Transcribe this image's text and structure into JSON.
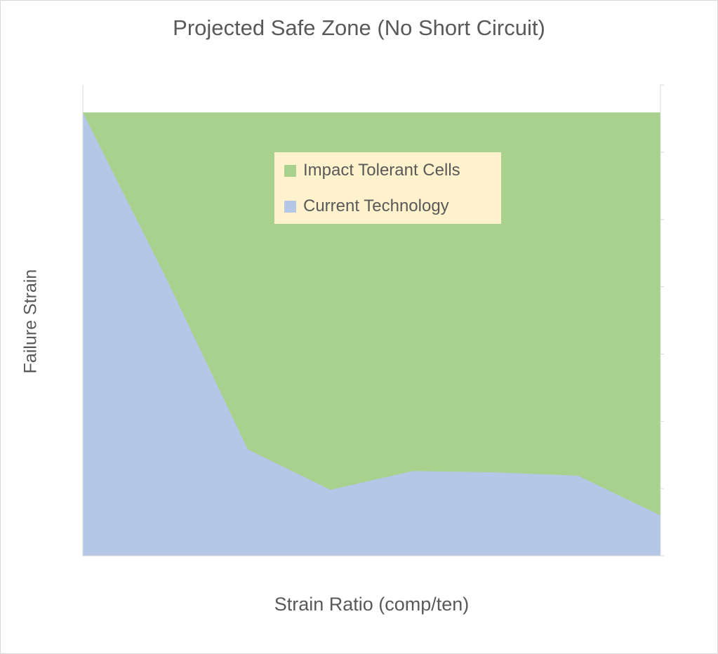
{
  "chart_data": {
    "type": "area",
    "title": "Projected Safe Zone (No Short Circuit)",
    "xlabel": "Strain Ratio (comp/ten)",
    "ylabel": "Failure Strain",
    "x": [
      1,
      2,
      3,
      4,
      5,
      6,
      7,
      8
    ],
    "ylim": [
      0,
      7
    ],
    "grid": false,
    "legend_position": "top-center",
    "series": [
      {
        "name": "Impact Tolerant Cells",
        "color": "#a9d18e",
        "values": [
          6.59,
          6.59,
          6.59,
          6.59,
          6.59,
          6.59,
          6.59,
          6.59
        ]
      },
      {
        "name": "Current Technology",
        "color": "#b4c7e7",
        "values": [
          6.59,
          4.15,
          1.58,
          0.98,
          1.26,
          1.24,
          1.19,
          0.6
        ]
      }
    ]
  }
}
